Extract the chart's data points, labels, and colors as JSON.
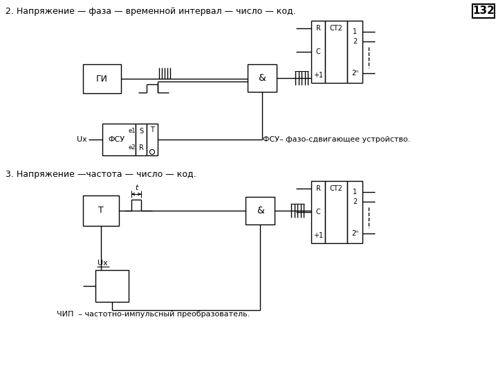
{
  "title_top": "2. Напряжение — фаза — временной интервал — число — код.",
  "title_bottom": "3. Напряжение —частота — число — код.",
  "page_num": "132",
  "fsu_label": "ФСУ– фазо-сдвигающее устройство.",
  "chip_label": "ЧИП  – частотно-импульсный преобразователь.",
  "bg_color": "#ffffff",
  "line_color": "#000000"
}
